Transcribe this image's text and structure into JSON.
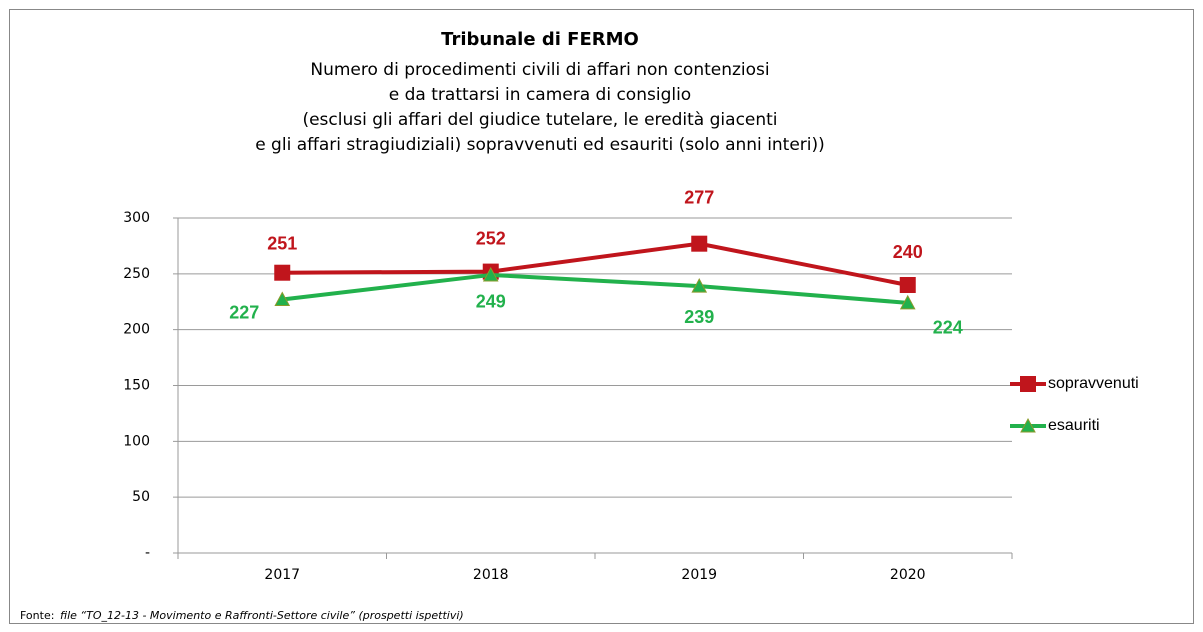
{
  "chart_data": {
    "type": "line",
    "title": "Tribunale di FERMO",
    "subtitle": [
      "Numero di procedimenti civili di affari non contenziosi",
      "e da trattarsi in camera di consiglio",
      "(esclusi gli affari del giudice tutelare, le eredità giacenti",
      "e gli affari stragiudiziali) sopravvenuti ed esauriti (solo anni interi))"
    ],
    "categories": [
      "2017",
      "2018",
      "2019",
      "2020"
    ],
    "series": [
      {
        "name": "sopravvenuti",
        "color": "#c0151c",
        "marker": "square",
        "values": [
          251,
          252,
          277,
          240
        ]
      },
      {
        "name": "esauriti",
        "color": "#22b14c",
        "marker": "triangle",
        "values": [
          227,
          249,
          239,
          224
        ]
      }
    ],
    "ylim": [
      0,
      300
    ],
    "yticks": [
      {
        "value": 0,
        "label": "-"
      },
      50,
      100,
      150,
      200,
      250,
      300
    ],
    "grid": true,
    "legend": "right",
    "source_label": "Fonte:",
    "source": "file “TO_12-13 - Movimento e Raffronti-Settore civile” (prospetti ispettivi)"
  }
}
